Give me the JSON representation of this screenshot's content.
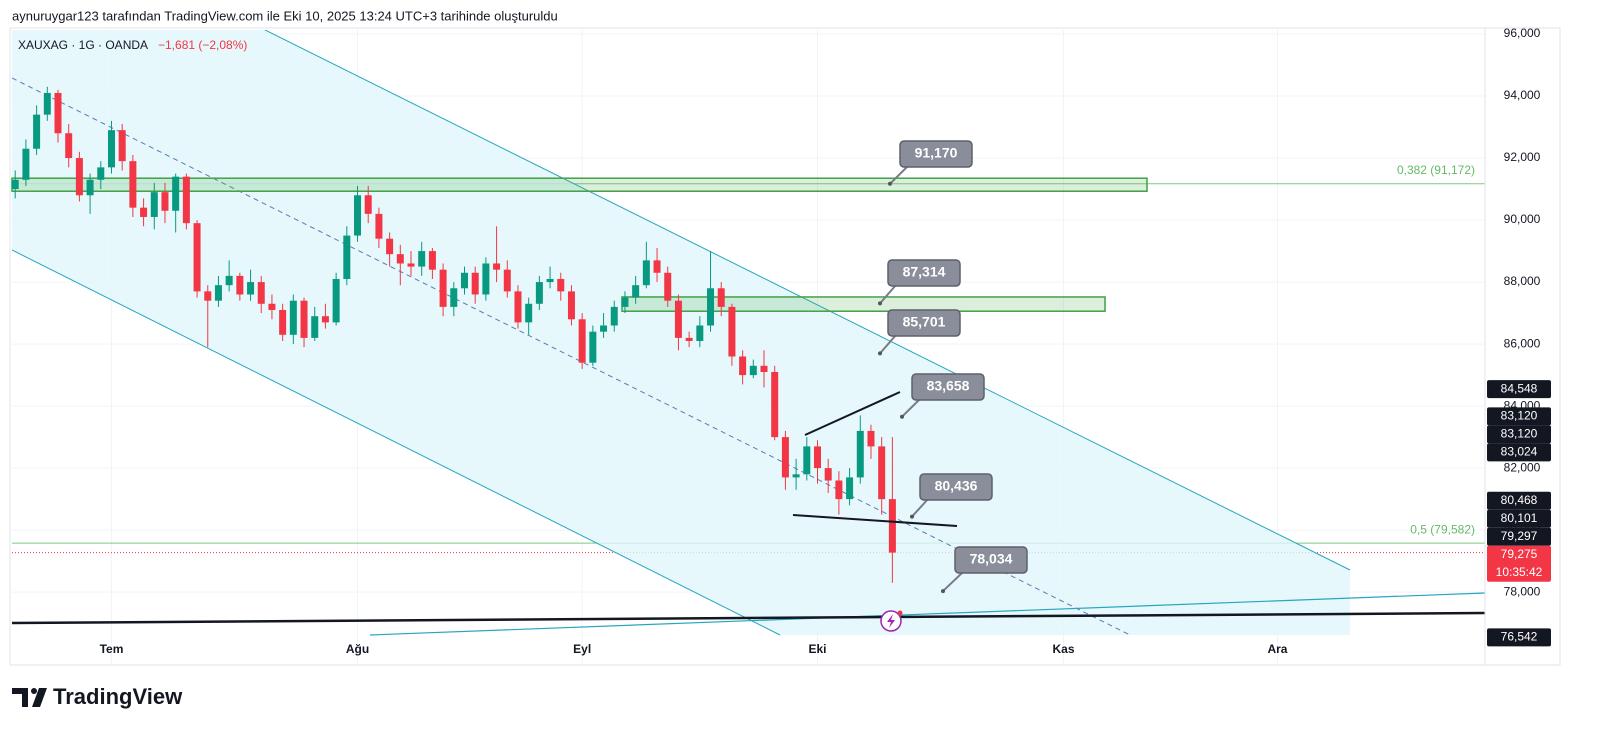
{
  "header": "aynuruygar123 tarafından TradingView.com ile Eki 10, 2025 13:24 UTC+3 tarihinde oluşturuldu",
  "logo": "TradingView",
  "chart_data": {
    "type": "candlestick",
    "symbol": "XAUXAG · 1G · OANDA",
    "change": "−1,681 (−2,08%)",
    "up_color": "#089981",
    "down_color": "#f23645",
    "open": [
      91000,
      91300,
      92300,
      93400,
      94100,
      92800,
      92000,
      90800,
      91300,
      91700,
      92900,
      91900,
      90400,
      90100,
      90900,
      90300,
      91400,
      89900,
      87700,
      87400,
      87900,
      88200,
      87600,
      88000,
      87300,
      87100,
      86300,
      87400,
      86200,
      86900,
      86700,
      88100,
      89500,
      90800,
      90200,
      89400,
      88900,
      88600,
      88500,
      89000,
      88400,
      87200,
      87800,
      88300,
      87600,
      88600,
      88400,
      87700,
      86700,
      87300,
      88000,
      88100,
      87700,
      86800,
      85400,
      86400,
      86600,
      87200,
      87500,
      87900,
      88700,
      88300,
      87400,
      86200,
      86100,
      86600,
      87800,
      87200,
      85600,
      85000,
      85300,
      85100,
      83000,
      81700,
      81800,
      82700,
      82000,
      81600,
      81000,
      81700,
      83200,
      82700,
      81000
    ],
    "high": [
      91600,
      92600,
      93700,
      94300,
      94200,
      93100,
      92200,
      91500,
      91900,
      93200,
      93100,
      92100,
      90700,
      91200,
      91200,
      91500,
      91500,
      90000,
      87900,
      88200,
      88700,
      88300,
      88400,
      88200,
      87600,
      87300,
      87600,
      87500,
      87200,
      87300,
      88300,
      89800,
      91100,
      91100,
      90400,
      89600,
      89200,
      89000,
      89300,
      89100,
      88600,
      88000,
      88500,
      88500,
      88800,
      89800,
      88700,
      87900,
      87500,
      88200,
      88500,
      88300,
      87900,
      87000,
      86600,
      87000,
      87400,
      87700,
      88200,
      89300,
      89100,
      88500,
      87600,
      86400,
      86900,
      89000,
      88000,
      87300,
      85800,
      85500,
      85800,
      85300,
      83200,
      82300,
      83000,
      82900,
      82300,
      81900,
      82000,
      83700,
      83400,
      83000,
      83000
    ],
    "low": [
      90700,
      91100,
      92100,
      93200,
      92500,
      91700,
      90600,
      90200,
      91000,
      91500,
      91600,
      90100,
      89800,
      89700,
      89900,
      89600,
      89700,
      87500,
      85900,
      87200,
      87700,
      87400,
      87400,
      87000,
      86800,
      86100,
      86000,
      85900,
      86100,
      86500,
      86600,
      87900,
      89300,
      89900,
      89100,
      88500,
      87900,
      88200,
      88200,
      88100,
      86900,
      86900,
      87600,
      87300,
      87400,
      88000,
      87500,
      86500,
      86300,
      87100,
      87800,
      87400,
      86600,
      85200,
      85300,
      86200,
      86400,
      87000,
      87300,
      87800,
      88000,
      87200,
      85800,
      85900,
      85900,
      86400,
      86900,
      85300,
      84700,
      84900,
      84600,
      82900,
      81300,
      81300,
      81600,
      81500,
      81200,
      80500,
      80800,
      81500,
      82300,
      80500,
      78300
    ],
    "close": [
      91300,
      92300,
      93400,
      94100,
      92800,
      92000,
      90800,
      91300,
      91700,
      92900,
      91900,
      90400,
      90100,
      90900,
      90300,
      91400,
      89900,
      87700,
      87400,
      87900,
      88200,
      87600,
      88000,
      87300,
      87100,
      86300,
      87400,
      86200,
      86900,
      86700,
      88100,
      89500,
      90800,
      90200,
      89400,
      88900,
      88600,
      88500,
      89000,
      88400,
      87200,
      87800,
      88300,
      87600,
      88600,
      88400,
      87700,
      86700,
      87300,
      88000,
      88100,
      87700,
      86800,
      85400,
      86400,
      86600,
      87200,
      87500,
      87900,
      88700,
      88300,
      87400,
      86200,
      86100,
      86600,
      87800,
      87200,
      85600,
      85000,
      85300,
      85100,
      83000,
      81700,
      81800,
      82700,
      82000,
      81600,
      81000,
      81700,
      83200,
      82700,
      81000,
      79275
    ],
    "xlim": [
      -0.3,
      137.4
    ],
    "xticks": [
      {
        "value": 9,
        "label": "Tem"
      },
      {
        "value": 32,
        "label": "Ağu"
      },
      {
        "value": 53,
        "label": "Eyl"
      },
      {
        "value": 75,
        "label": "Eki"
      },
      {
        "value": 98,
        "label": "Kas"
      },
      {
        "value": 118,
        "label": "Ara"
      }
    ],
    "ylim": [
      75650,
      96130
    ],
    "yticks": [
      {
        "value": 78000,
        "label": "78,000"
      },
      {
        "value": 80000,
        "label": "80,000"
      },
      {
        "value": 82000,
        "label": "82,000"
      },
      {
        "value": 84000,
        "label": "84,000"
      },
      {
        "value": 86000,
        "label": "86,000"
      },
      {
        "value": 88000,
        "label": "88,000"
      },
      {
        "value": 90000,
        "label": "90,000"
      },
      {
        "value": 92000,
        "label": "92,000"
      },
      {
        "value": 94000,
        "label": "94,000"
      },
      {
        "value": 96000,
        "label": "96,000"
      }
    ],
    "grid": true,
    "price_labels": [
      {
        "value": 84548,
        "label": "84,548"
      },
      {
        "value": 83120,
        "label": "83,120"
      },
      {
        "value": 83120,
        "label": "83,120"
      },
      {
        "value": 83024,
        "label": "83,024"
      },
      {
        "value": 80468,
        "label": "80,468"
      },
      {
        "value": 80101,
        "label": "80,101"
      },
      {
        "value": 79297,
        "label": "79,297"
      },
      {
        "value": 76542,
        "label": "76,542"
      }
    ],
    "last_price": {
      "value": 79275,
      "label": "79,275"
    },
    "countdown": "10:35:42",
    "fib_levels": [
      {
        "value": 91172,
        "label": "0,382 (91,172)"
      },
      {
        "value": 79582,
        "label": "0,5 (79,582)"
      }
    ],
    "zones": [
      {
        "top": 91350,
        "bottom": 90930
      },
      {
        "top": 87520,
        "bottom": 87060
      }
    ],
    "annotations": [
      {
        "value": 91170,
        "label": "91,170"
      },
      {
        "value": 87314,
        "label": "87,314"
      },
      {
        "value": 85701,
        "label": "85,701"
      },
      {
        "value": 83658,
        "label": "83,658"
      },
      {
        "value": 80436,
        "label": "80,436"
      },
      {
        "value": 78034,
        "label": "78,034"
      }
    ]
  }
}
